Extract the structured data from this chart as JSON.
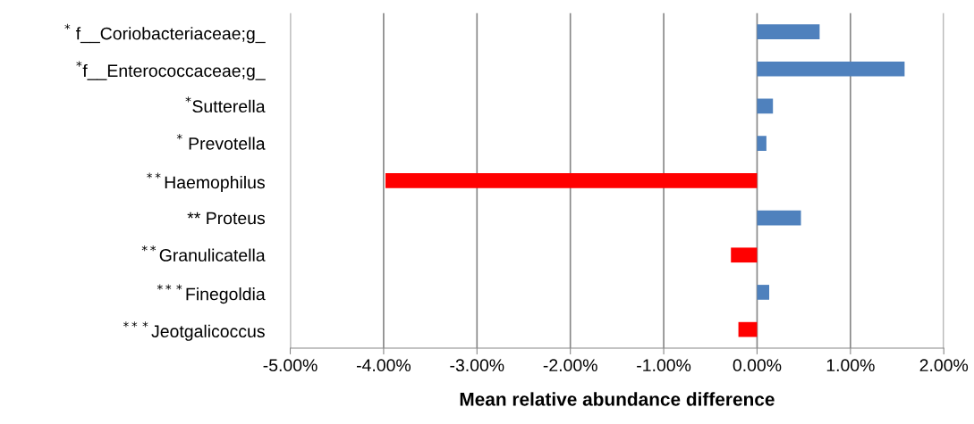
{
  "chart_data": {
    "type": "bar",
    "orientation": "horizontal",
    "xlabel": "Mean relative abundance difference",
    "categories": [
      "$^{*}$ f__Coriobacteriaceae;g_",
      "$^{*}$f__Enterococcaceae;g_",
      "$^{*}$Sutterella",
      "$^{*}$ Prevotella",
      "$^{**}$Haemophilus",
      "** Proteus",
      "$^{**}$Granulicatella",
      "$^{***}$Finegoldia",
      "$^{***}$Jeotgalicoccus"
    ],
    "values": [
      0.0067,
      0.0158,
      0.0017,
      0.001,
      -0.0398,
      0.0047,
      -0.0028,
      0.0013,
      -0.002
    ],
    "colors": [
      "#4f81bd",
      "#4f81bd",
      "#4f81bd",
      "#4f81bd",
      "#ff0000",
      "#4f81bd",
      "#ff0000",
      "#4f81bd",
      "#ff0000"
    ],
    "xlim": [
      -0.05,
      0.02
    ],
    "xticks": [
      {
        "value": -0.05,
        "label": "-5.00%"
      },
      {
        "value": -0.04,
        "label": "-4.00%"
      },
      {
        "value": -0.03,
        "label": "-3.00%"
      },
      {
        "value": -0.02,
        "label": "-2.00%"
      },
      {
        "value": -0.01,
        "label": "-1.00%"
      },
      {
        "value": 0,
        "label": "0.00%"
      },
      {
        "value": 0.01,
        "label": "1.00%"
      },
      {
        "value": 0.02,
        "label": "2.00%"
      }
    ],
    "grid": "x",
    "legend": false
  }
}
